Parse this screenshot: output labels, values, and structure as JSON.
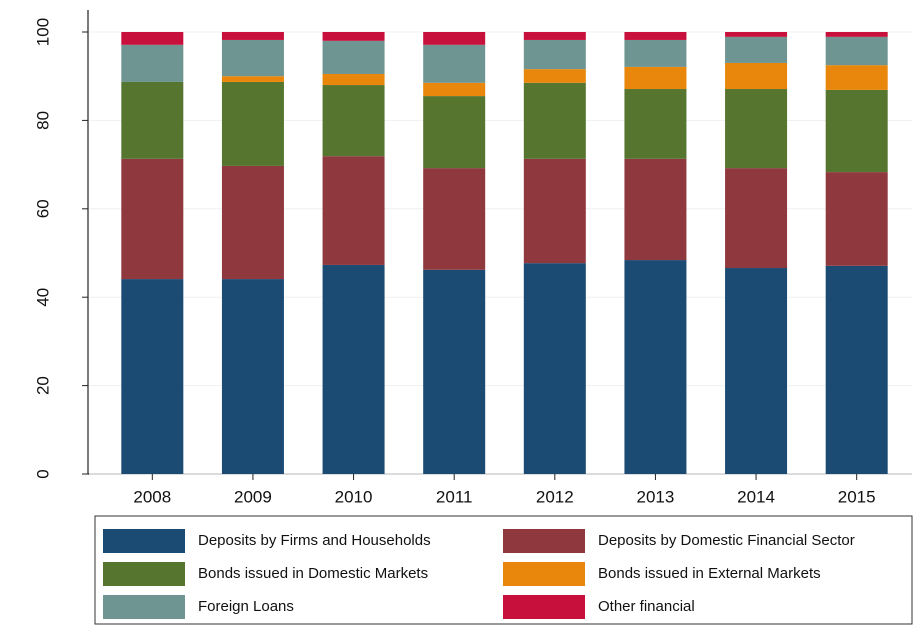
{
  "chart_data": {
    "type": "stacked_bar",
    "categories": [
      "2008",
      "2009",
      "2010",
      "2011",
      "2012",
      "2013",
      "2014",
      "2015"
    ],
    "series": [
      {
        "name": "Deposits by Firms and Households",
        "color": "#1b4a73",
        "values": [
          44.1,
          44.1,
          47.3,
          46.2,
          47.7,
          48.4,
          46.6,
          47.1
        ]
      },
      {
        "name": "Deposits by Domestic Financial Sector",
        "color": "#8f383d",
        "values": [
          27.2,
          25.6,
          24.6,
          23.0,
          23.6,
          22.9,
          22.6,
          21.2
        ]
      },
      {
        "name": "Bonds issued in Domestic Markets",
        "color": "#56752f",
        "values": [
          17.4,
          19.0,
          16.1,
          16.3,
          17.2,
          15.8,
          17.9,
          18.6
        ]
      },
      {
        "name": "Bonds issued in External Markets",
        "color": "#e8870b",
        "values": [
          0,
          1.3,
          2.5,
          3.0,
          3.1,
          5.0,
          5.9,
          5.6
        ]
      },
      {
        "name": "Foreign Loans",
        "color": "#6e9591",
        "values": [
          8.4,
          8.2,
          7.5,
          8.6,
          6.6,
          6.1,
          5.9,
          6.4
        ]
      },
      {
        "name": "Other financial",
        "color": "#c8103c",
        "values": [
          2.9,
          1.8,
          2.0,
          2.9,
          1.8,
          1.8,
          1.1,
          1.1
        ]
      }
    ],
    "ylim": [
      0,
      100
    ],
    "yticks": [
      0,
      20,
      40,
      60,
      80,
      100
    ],
    "grid": true
  }
}
